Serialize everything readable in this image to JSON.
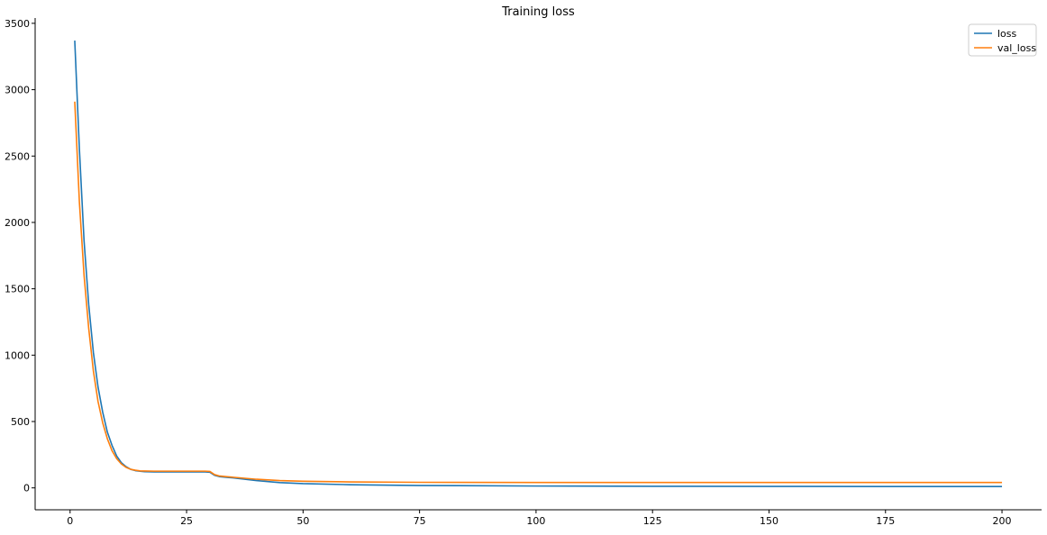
{
  "chart_data": {
    "type": "line",
    "title": "Training loss",
    "xlabel": "",
    "ylabel": "",
    "xlim": [
      -7.5,
      208.5
    ],
    "ylim": [
      -165,
      3540
    ],
    "xticks": [
      0,
      25,
      50,
      75,
      100,
      125,
      150,
      175,
      200
    ],
    "yticks": [
      0,
      500,
      1000,
      1500,
      2000,
      2500,
      3000,
      3500
    ],
    "grid": false,
    "legend_position": "top-right",
    "colors": {
      "loss": "#1f77b4",
      "val_loss": "#ff7f0e"
    },
    "series": [
      {
        "name": "loss",
        "color": "#1f77b4",
        "x": [
          1,
          2,
          3,
          4,
          5,
          6,
          7,
          8,
          9,
          10,
          11,
          12,
          13,
          14,
          15,
          16,
          18,
          20,
          25,
          29,
          30,
          31,
          32,
          35,
          40,
          45,
          50,
          60,
          75,
          100,
          125,
          150,
          175,
          200
        ],
        "y": [
          3370,
          2550,
          1860,
          1380,
          1020,
          760,
          570,
          420,
          320,
          240,
          190,
          160,
          140,
          130,
          125,
          122,
          120,
          120,
          120,
          120,
          118,
          95,
          85,
          75,
          55,
          40,
          32,
          24,
          18,
          14,
          12,
          11,
          10,
          10
        ]
      },
      {
        "name": "val_loss",
        "color": "#ff7f0e",
        "x": [
          1,
          2,
          3,
          4,
          5,
          6,
          7,
          8,
          9,
          10,
          11,
          12,
          13,
          14,
          15,
          16,
          18,
          20,
          25,
          29,
          30,
          31,
          32,
          35,
          40,
          45,
          50,
          60,
          75,
          100,
          125,
          150,
          175,
          200
        ],
        "y": [
          2910,
          2150,
          1600,
          1200,
          880,
          650,
          490,
          370,
          280,
          220,
          180,
          155,
          140,
          133,
          128,
          127,
          126,
          126,
          126,
          126,
          124,
          100,
          90,
          80,
          65,
          55,
          50,
          45,
          42,
          41,
          41,
          41,
          41,
          41
        ]
      }
    ]
  }
}
